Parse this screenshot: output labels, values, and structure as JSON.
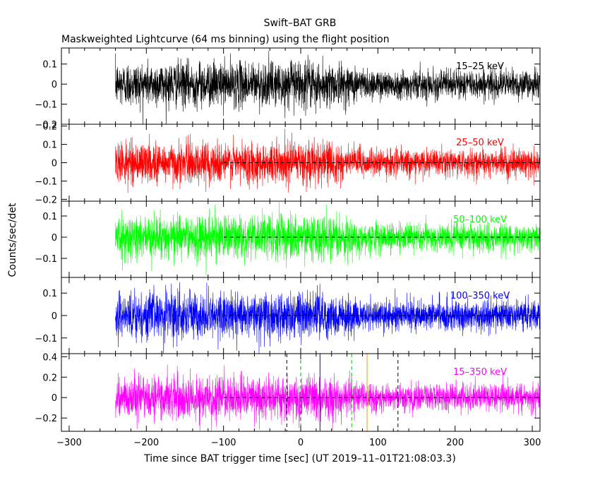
{
  "chart_data": {
    "type": "line",
    "title": "Swift–BAT GRB",
    "subtitle": "Maskweighted Lightcurve (64 ms binning) using the flight position",
    "xlabel": "Time since BAT trigger time [sec] (UT 2019–11–01T21:08:03.3)",
    "ylabel": "Counts/sec/det",
    "xlim": [
      -310,
      310
    ],
    "xticks": [
      -300,
      -200,
      -100,
      0,
      100,
      200,
      300
    ],
    "xtick_labels": [
      "−300",
      "−200",
      "−100",
      "0",
      "100",
      "200",
      "300"
    ],
    "data_x_range": [
      -240,
      310
    ],
    "panels": [
      {
        "name": "15–25 keV",
        "color": "#000000",
        "ylim": [
          -0.2,
          0.18
        ],
        "yticks": [
          0.1,
          0,
          -0.1,
          -0.2
        ],
        "ytick_labels": [
          "0.1",
          "0",
          "−0.1",
          "−0.2"
        ],
        "noise_early": 0.055,
        "noise_late": 0.035,
        "zero_line": false
      },
      {
        "name": "25–50 keV",
        "color": "#ff0000",
        "ylim": [
          -0.21,
          0.21
        ],
        "yticks": [
          0.2,
          0.1,
          0,
          -0.1,
          -0.2
        ],
        "ytick_labels": [
          "0.2",
          "0.1",
          "0",
          "−0.1",
          "−0.2"
        ],
        "noise_early": 0.055,
        "noise_late": 0.035,
        "zero_line": true
      },
      {
        "name": "50–100 keV",
        "color": "#00ff00",
        "ylim": [
          -0.19,
          0.17
        ],
        "yticks": [
          0.1,
          0,
          -0.1
        ],
        "ytick_labels": [
          "0.1",
          "0",
          "−0.1"
        ],
        "noise_early": 0.05,
        "noise_late": 0.032,
        "zero_line": true
      },
      {
        "name": "100–350 keV",
        "color": "#0000ff",
        "ylim": [
          -0.17,
          0.17
        ],
        "yticks": [
          0.1,
          0,
          -0.1
        ],
        "ytick_labels": [
          "0.1",
          "0",
          "−0.1"
        ],
        "noise_early": 0.05,
        "noise_late": 0.032,
        "zero_line": true
      },
      {
        "name": "15–350 keV",
        "color": "#ff00ff",
        "ylim": [
          -0.33,
          0.43
        ],
        "yticks": [
          0.4,
          0.2,
          0,
          -0.2
        ],
        "ytick_labels": [
          "0.4",
          "0.2",
          "0",
          "−0.2"
        ],
        "noise_early": 0.1,
        "noise_late": 0.065,
        "zero_line": true
      }
    ],
    "zero_line_start": -100,
    "vertical_markers": [
      {
        "x": -18,
        "color": "#000000",
        "style": "dashed"
      },
      {
        "x": 0,
        "color": "#00aa00",
        "style": "dashed"
      },
      {
        "x": 25,
        "color": "#0000ff",
        "style": "solid"
      },
      {
        "x": 66,
        "color": "#00cc00",
        "style": "dashed"
      },
      {
        "x": 86,
        "color": "#ff9900",
        "style": "solid"
      },
      {
        "x": 126,
        "color": "#000000",
        "style": "dashed"
      }
    ]
  }
}
